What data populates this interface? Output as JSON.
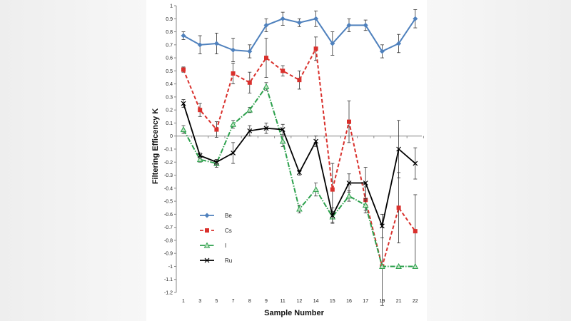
{
  "chart_data": {
    "type": "line",
    "title": "",
    "xlabel": "Sample Number",
    "ylabel": "Filtering Efficency K",
    "categories": [
      "1",
      "3",
      "5",
      "7",
      "8",
      "9",
      "11",
      "12",
      "14",
      "15",
      "16",
      "17",
      "19",
      "21",
      "22"
    ],
    "ylim": [
      -1.2,
      1
    ],
    "yticks": [
      "1",
      "0.9",
      "0.8",
      "0.7",
      "0.6",
      "0.5",
      "0.4",
      "0.3",
      "0.2",
      "0.1",
      "0",
      "-0.1",
      "-0.2",
      "-0.3",
      "-0.4",
      "-0.5",
      "-0.6",
      "-0.7",
      "-0.8",
      "-0.9",
      "-1",
      "-1.1",
      "-1.2"
    ],
    "legend_position": "lower-left",
    "series": [
      {
        "name": "Be",
        "color": "#4f81bd",
        "marker": "diamond",
        "dash": "solid",
        "values": [
          0.77,
          0.7,
          0.71,
          0.66,
          0.65,
          0.85,
          0.9,
          0.87,
          0.9,
          0.71,
          0.85,
          0.85,
          0.65,
          0.71,
          0.9
        ],
        "errors": [
          0.03,
          0.07,
          0.08,
          0.09,
          0.05,
          0.05,
          0.05,
          0.03,
          0.06,
          0.09,
          0.05,
          0.04,
          0.05,
          0.07,
          0.07
        ]
      },
      {
        "name": "Cs",
        "color": "#d9302c",
        "marker": "square",
        "dash": "dashed",
        "values": [
          0.51,
          0.2,
          0.05,
          0.48,
          0.41,
          0.6,
          0.5,
          0.43,
          0.67,
          -0.41,
          0.11,
          -0.49,
          -1.0,
          -0.55,
          -0.73
        ],
        "errors": [
          0.02,
          0.05,
          0.06,
          0.08,
          0.08,
          0.15,
          0.04,
          0.07,
          0.09,
          0.2,
          0.16,
          0.1,
          0.3,
          0.27,
          0.28
        ]
      },
      {
        "name": "I",
        "color": "#2ca04c",
        "marker": "triangle",
        "dash": "dashdot",
        "values": [
          0.05,
          -0.18,
          -0.21,
          0.09,
          0.2,
          0.38,
          -0.04,
          -0.56,
          -0.41,
          -0.62,
          -0.46,
          -0.53,
          -1.0,
          -1.0,
          -1.0
        ],
        "errors": [
          0.03,
          0.02,
          0.03,
          0.03,
          0.02,
          0.03,
          0.04,
          0.03,
          0.05,
          0.04,
          0.04,
          0.04,
          0.0,
          0.0,
          0.0
        ]
      },
      {
        "name": "Ru",
        "color": "#000000",
        "marker": "x",
        "dash": "solid",
        "values": [
          0.25,
          -0.15,
          -0.2,
          -0.13,
          0.04,
          0.06,
          0.05,
          -0.28,
          -0.04,
          -0.61,
          -0.36,
          -0.36,
          -0.69,
          -0.1,
          -0.21
        ],
        "errors": [
          0.03,
          0.02,
          0.02,
          0.08,
          0.04,
          0.04,
          0.04,
          0.02,
          0.04,
          0.06,
          0.07,
          0.12,
          0.09,
          0.22,
          0.12
        ]
      }
    ]
  }
}
